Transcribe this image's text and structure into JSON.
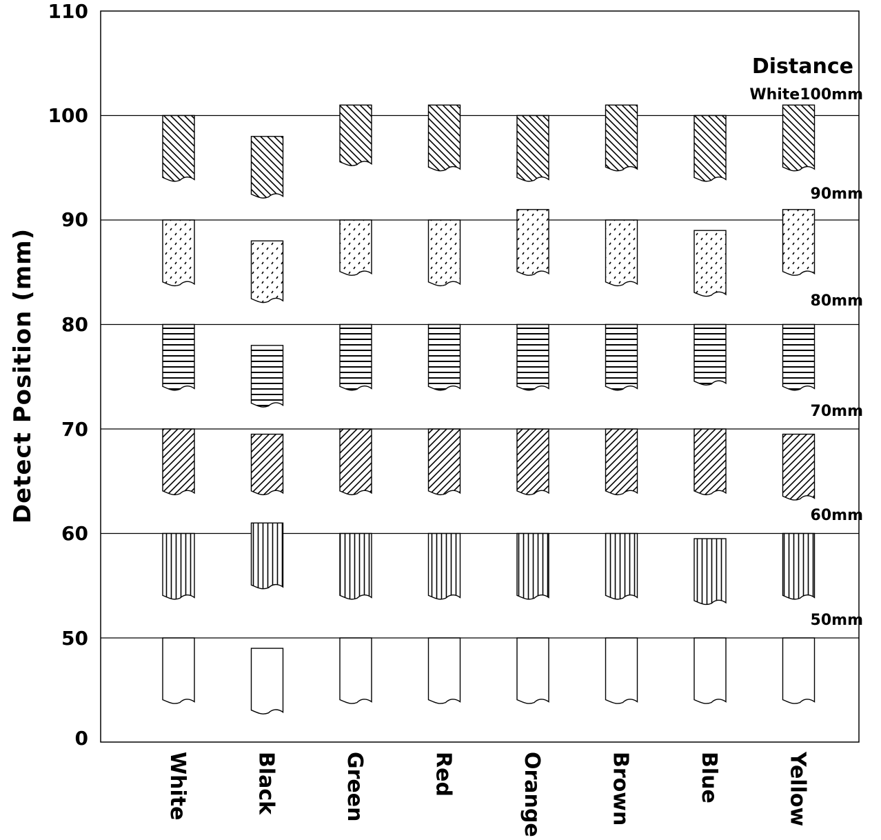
{
  "chart_data": {
    "type": "bar",
    "ylabel": "Detect Position (mm)",
    "xlabel": "",
    "yticks": [
      "0",
      "50",
      "60",
      "70",
      "80",
      "90",
      "100",
      "110"
    ],
    "categories": [
      "White",
      "Black",
      "Green",
      "Red",
      "Orange",
      "Brown",
      "Blue",
      "Yellow"
    ],
    "legend_title": "Distance",
    "legend_placement": "right, beside each series band",
    "grid": "horizontal gridlines at 50, 60, 70, 80, 90, 100",
    "series": [
      {
        "name": "White100mm",
        "pattern": "back-diagonal",
        "top": [
          100,
          98,
          101,
          101,
          100,
          101,
          100,
          101
        ],
        "bottom": [
          94,
          92.4,
          95.5,
          95,
          94,
          95,
          94,
          95
        ]
      },
      {
        "name": "90mm",
        "pattern": "dashed-dots",
        "top": [
          90,
          88,
          90,
          90,
          91,
          90,
          89,
          91
        ],
        "bottom": [
          84,
          82.4,
          85,
          84,
          85,
          84,
          83,
          85
        ]
      },
      {
        "name": "80mm",
        "pattern": "horizontal-lines",
        "top": [
          80,
          78,
          80,
          80,
          80,
          80,
          80,
          80
        ],
        "bottom": [
          74,
          72.4,
          74,
          74,
          74,
          74,
          74.5,
          74
        ]
      },
      {
        "name": "70mm",
        "pattern": "forward-diagonal",
        "top": [
          70,
          69.5,
          70,
          70,
          70,
          70,
          70,
          69.5
        ],
        "bottom": [
          64,
          64,
          64,
          64,
          64,
          64,
          64,
          63.5
        ]
      },
      {
        "name": "60mm",
        "pattern": "vertical-lines",
        "top": [
          60,
          61,
          60,
          60,
          60,
          60,
          59.5,
          60
        ],
        "bottom": [
          54,
          55,
          54,
          54,
          54,
          54,
          53.5,
          54
        ]
      },
      {
        "name": "50mm",
        "pattern": "blank",
        "top": [
          50,
          49,
          50,
          50,
          50,
          50,
          50,
          50
        ],
        "bottom": [
          44,
          43,
          44,
          44,
          44,
          44,
          44,
          44
        ]
      }
    ]
  }
}
